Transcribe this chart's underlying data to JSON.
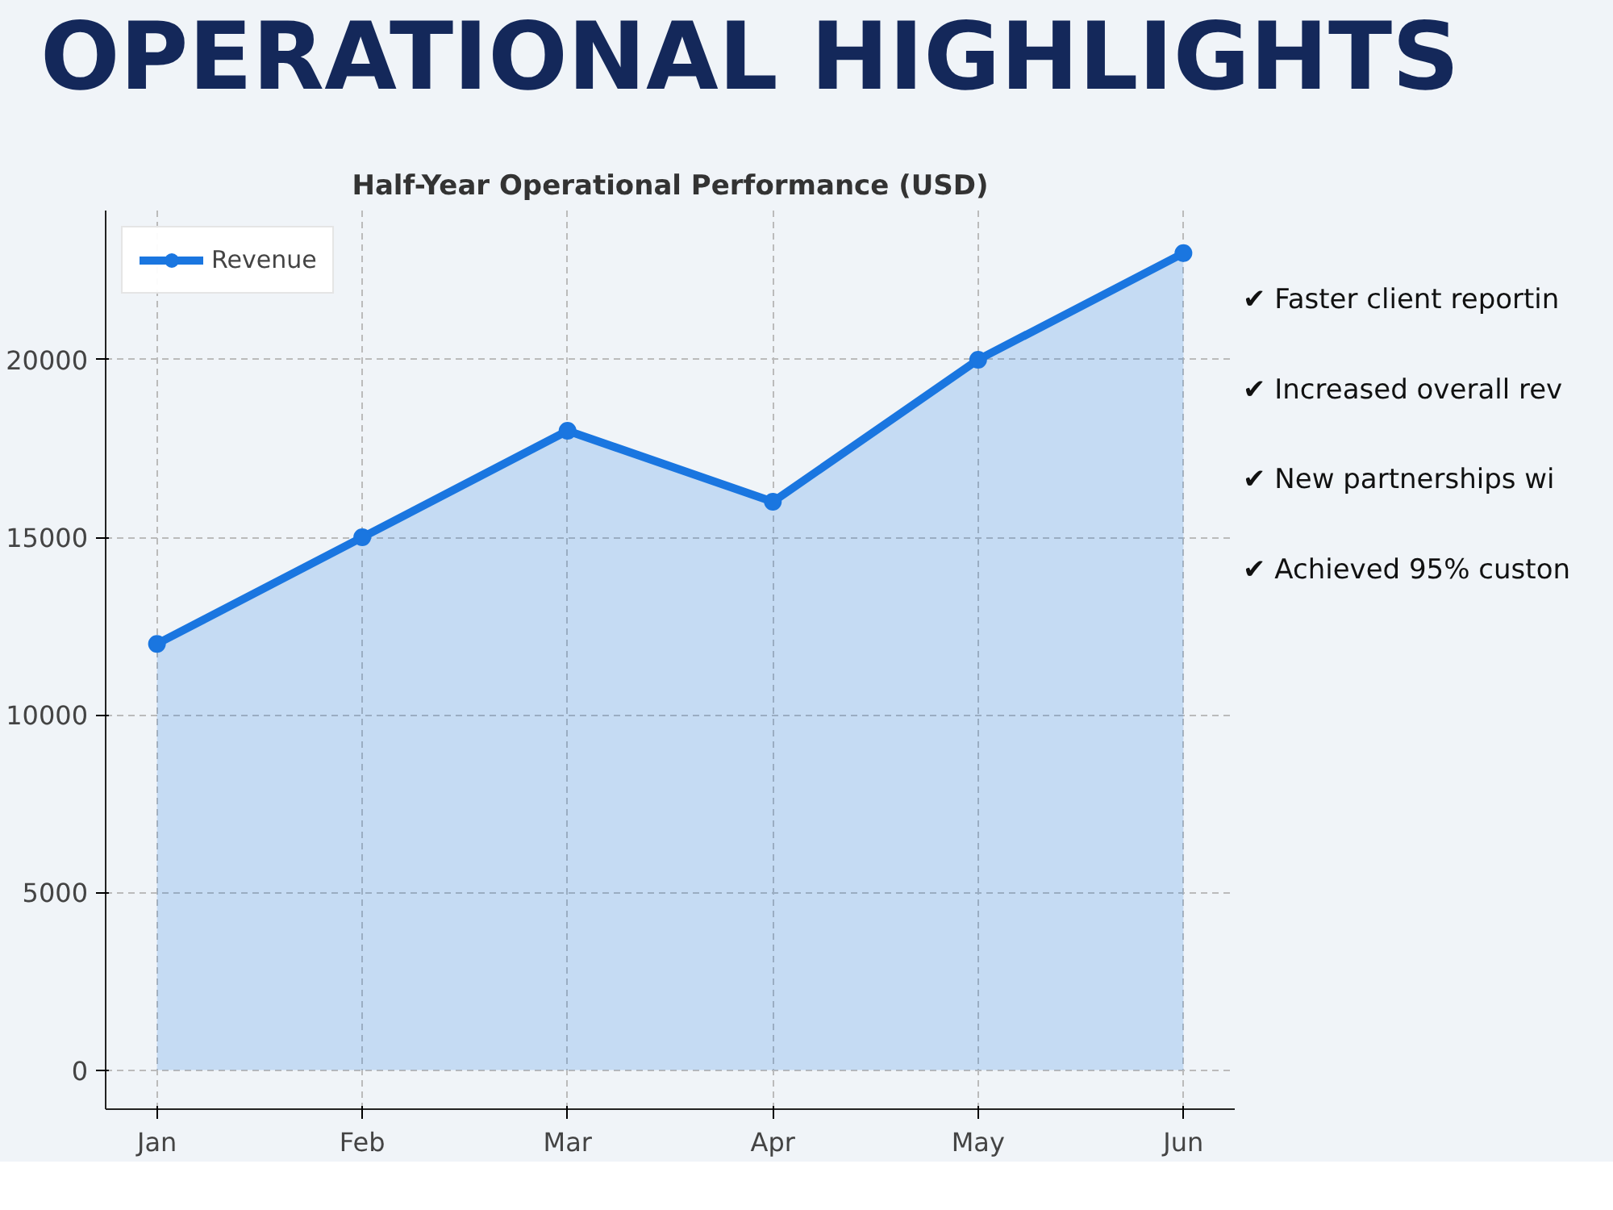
{
  "chart_data": {
    "type": "area",
    "title": "OPERATIONAL HIGHLIGHTS",
    "subtitle": "Half-Year Operational Performance (USD)",
    "categories": [
      "Jan",
      "Feb",
      "Mar",
      "Apr",
      "May",
      "Jun"
    ],
    "series": [
      {
        "name": "Revenue",
        "color": "#1a76e0",
        "values": [
          12000,
          15000,
          18000,
          16000,
          20000,
          23000
        ]
      }
    ],
    "ylim": [
      -1100,
      24200
    ],
    "yticks": [
      0,
      5000,
      10000,
      15000,
      20000
    ],
    "grid": true,
    "legend": "top left",
    "marker": "circle",
    "line_style": "solid",
    "annotations": [
      "✔ Faster client reportin",
      "✔ Increased overall rev",
      "✔ New partnerships wi",
      "✔ Achieved 95% custon"
    ]
  }
}
